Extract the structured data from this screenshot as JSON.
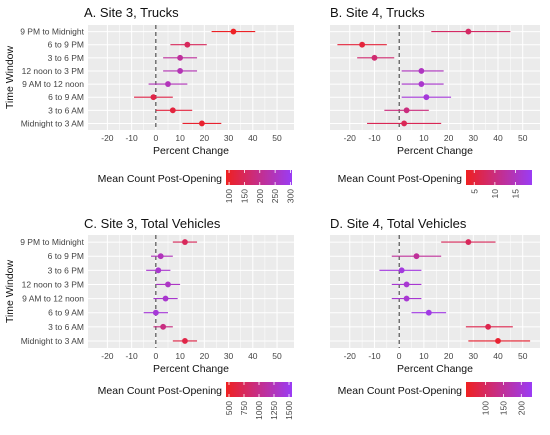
{
  "figure": {
    "y_axis_title": "Time Window",
    "x_axis_title": "Percent Change",
    "legend_title": "Mean Count Post-Opening",
    "row_labels": [
      "9 PM to Midnight",
      "6 to 9 PM",
      "3 to 6 PM",
      "12 noon to 3 PM",
      "9 AM to 12 noon",
      "6 to 9 AM",
      "3 to 6 AM",
      "Midnight to 3 AM"
    ],
    "x_ticks": [
      -20,
      -10,
      0,
      10,
      20,
      30,
      40,
      50
    ],
    "x_range": [
      -28,
      57
    ],
    "colors": {
      "panel_bg": "#ebebeb",
      "grid": "#ffffff",
      "gradient_low": "#ef2020",
      "gradient_high": "#9a3cf5",
      "zero_line": "#333333"
    }
  },
  "chart_data": [
    {
      "type": "scatter",
      "subtype": "point-range",
      "title": "A. Site 3, Trucks",
      "xlabel": "Percent Change",
      "ylabel": "Time Window",
      "xlim": [
        -28,
        57
      ],
      "categories": [
        "9 PM to Midnight",
        "6 to 9 PM",
        "3 to 6 PM",
        "12 noon to 3 PM",
        "9 AM to 12 noon",
        "6 to 9 AM",
        "3 to 6 AM",
        "Midnight to 3 AM"
      ],
      "estimate": [
        32,
        13,
        10,
        10,
        5,
        -1,
        7,
        19
      ],
      "lower": [
        23,
        6,
        3,
        3,
        -3,
        -9,
        0,
        11
      ],
      "upper": [
        41,
        21,
        17,
        17,
        13,
        7,
        15,
        27
      ],
      "color_value": [
        95,
        150,
        215,
        240,
        245,
        130,
        120,
        105
      ],
      "legend": {
        "title": "Mean Count Post-Opening",
        "ticks": [
          100,
          150,
          200,
          250,
          300
        ],
        "range": [
          90,
          305
        ]
      }
    },
    {
      "type": "scatter",
      "subtype": "point-range",
      "title": "B. Site 4, Trucks",
      "xlabel": "Percent Change",
      "ylabel": "Time Window",
      "xlim": [
        -28,
        57
      ],
      "categories": [
        "9 PM to Midnight",
        "6 to 9 PM",
        "3 to 6 PM",
        "12 noon to 3 PM",
        "9 AM to 12 noon",
        "6 to 9 AM",
        "3 to 6 AM",
        "Midnight to 3 AM"
      ],
      "estimate": [
        28,
        -15,
        -10,
        9,
        9,
        11,
        3,
        2
      ],
      "lower": [
        13,
        -25,
        -17,
        1,
        1,
        1,
        -6,
        -13
      ],
      "upper": [
        45,
        -5,
        -2,
        18,
        18,
        21,
        12,
        17
      ],
      "color_value": [
        8,
        5,
        9,
        15,
        16,
        17,
        10,
        7
      ],
      "legend": {
        "title": "Mean Count Post-Opening",
        "ticks": [
          5,
          10,
          15
        ],
        "range": [
          3,
          19
        ]
      }
    },
    {
      "type": "scatter",
      "subtype": "point-range",
      "title": "C. Site 3, Total Vehicles",
      "xlabel": "Percent Change",
      "ylabel": "Time Window",
      "xlim": [
        -28,
        57
      ],
      "categories": [
        "9 PM to Midnight",
        "6 to 9 PM",
        "3 to 6 PM",
        "12 noon to 3 PM",
        "9 AM to 12 noon",
        "6 to 9 AM",
        "3 to 6 AM",
        "Midnight to 3 AM"
      ],
      "estimate": [
        12,
        2,
        1,
        5,
        4,
        0,
        3,
        12
      ],
      "lower": [
        7,
        -2,
        -4,
        0,
        -1,
        -5,
        -1,
        7
      ],
      "upper": [
        17,
        7,
        6,
        10,
        9,
        5,
        7,
        17
      ],
      "color_value": [
        750,
        1250,
        1350,
        1300,
        1350,
        1400,
        950,
        650
      ],
      "legend": {
        "title": "Mean Count Post-Opening",
        "ticks": [
          500,
          750,
          1000,
          1250,
          1500
        ],
        "range": [
          450,
          1550
        ]
      }
    },
    {
      "type": "scatter",
      "subtype": "point-range",
      "title": "D. Site 4, Total Vehicles",
      "xlabel": "Percent Change",
      "ylabel": "Time Window",
      "xlim": [
        -28,
        57
      ],
      "categories": [
        "9 PM to Midnight",
        "6 to 9 PM",
        "3 to 6 PM",
        "12 noon to 3 PM",
        "9 AM to 12 noon",
        "6 to 9 AM",
        "3 to 6 AM",
        "Midnight to 3 AM"
      ],
      "estimate": [
        28,
        7,
        1,
        3,
        3,
        12,
        36,
        40
      ],
      "lower": [
        17,
        -3,
        -8,
        -3,
        -3,
        5,
        27,
        28
      ],
      "upper": [
        39,
        17,
        9,
        9,
        9,
        19,
        46,
        53
      ],
      "color_value": [
        95,
        150,
        210,
        200,
        200,
        215,
        85,
        60
      ],
      "legend": {
        "title": "Mean Count Post-Opening",
        "ticks": [
          100,
          150,
          200
        ],
        "range": [
          45,
          230
        ]
      }
    }
  ]
}
